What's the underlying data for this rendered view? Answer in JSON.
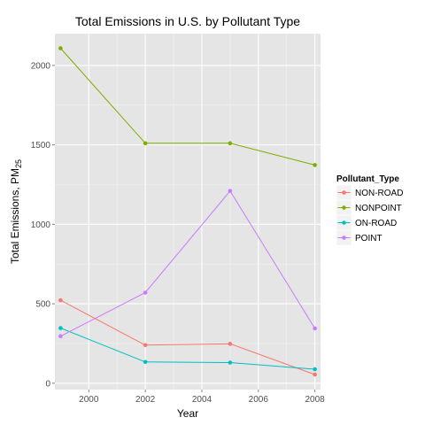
{
  "chart_data": {
    "type": "line",
    "title": "Total Emissions in U.S. by Pollutant Type",
    "xlabel": "Year",
    "ylabel_main": "Total Emissions, PM",
    "ylabel_subscript": "25",
    "x": [
      1999,
      2002,
      2005,
      2008
    ],
    "xlim": [
      1998.8,
      2008.2
    ],
    "ylim": [
      -40,
      2200
    ],
    "x_ticks": [
      2000,
      2002,
      2004,
      2006,
      2008
    ],
    "y_ticks": [
      0,
      500,
      1000,
      1500,
      2000
    ],
    "grid": true,
    "legend_title": "Pollutant_Type",
    "legend_position": "right",
    "series": [
      {
        "name": "NON-ROAD",
        "color": "#f8766d",
        "values": [
          522,
          240,
          248,
          55
        ]
      },
      {
        "name": "NONPOINT",
        "color": "#7cae00",
        "values": [
          2108,
          1510,
          1510,
          1373
        ]
      },
      {
        "name": "ON-ROAD",
        "color": "#00bfc4",
        "values": [
          347,
          134,
          130,
          88
        ]
      },
      {
        "name": "POINT",
        "color": "#c77cff",
        "values": [
          296,
          570,
          1210,
          345
        ]
      }
    ]
  }
}
